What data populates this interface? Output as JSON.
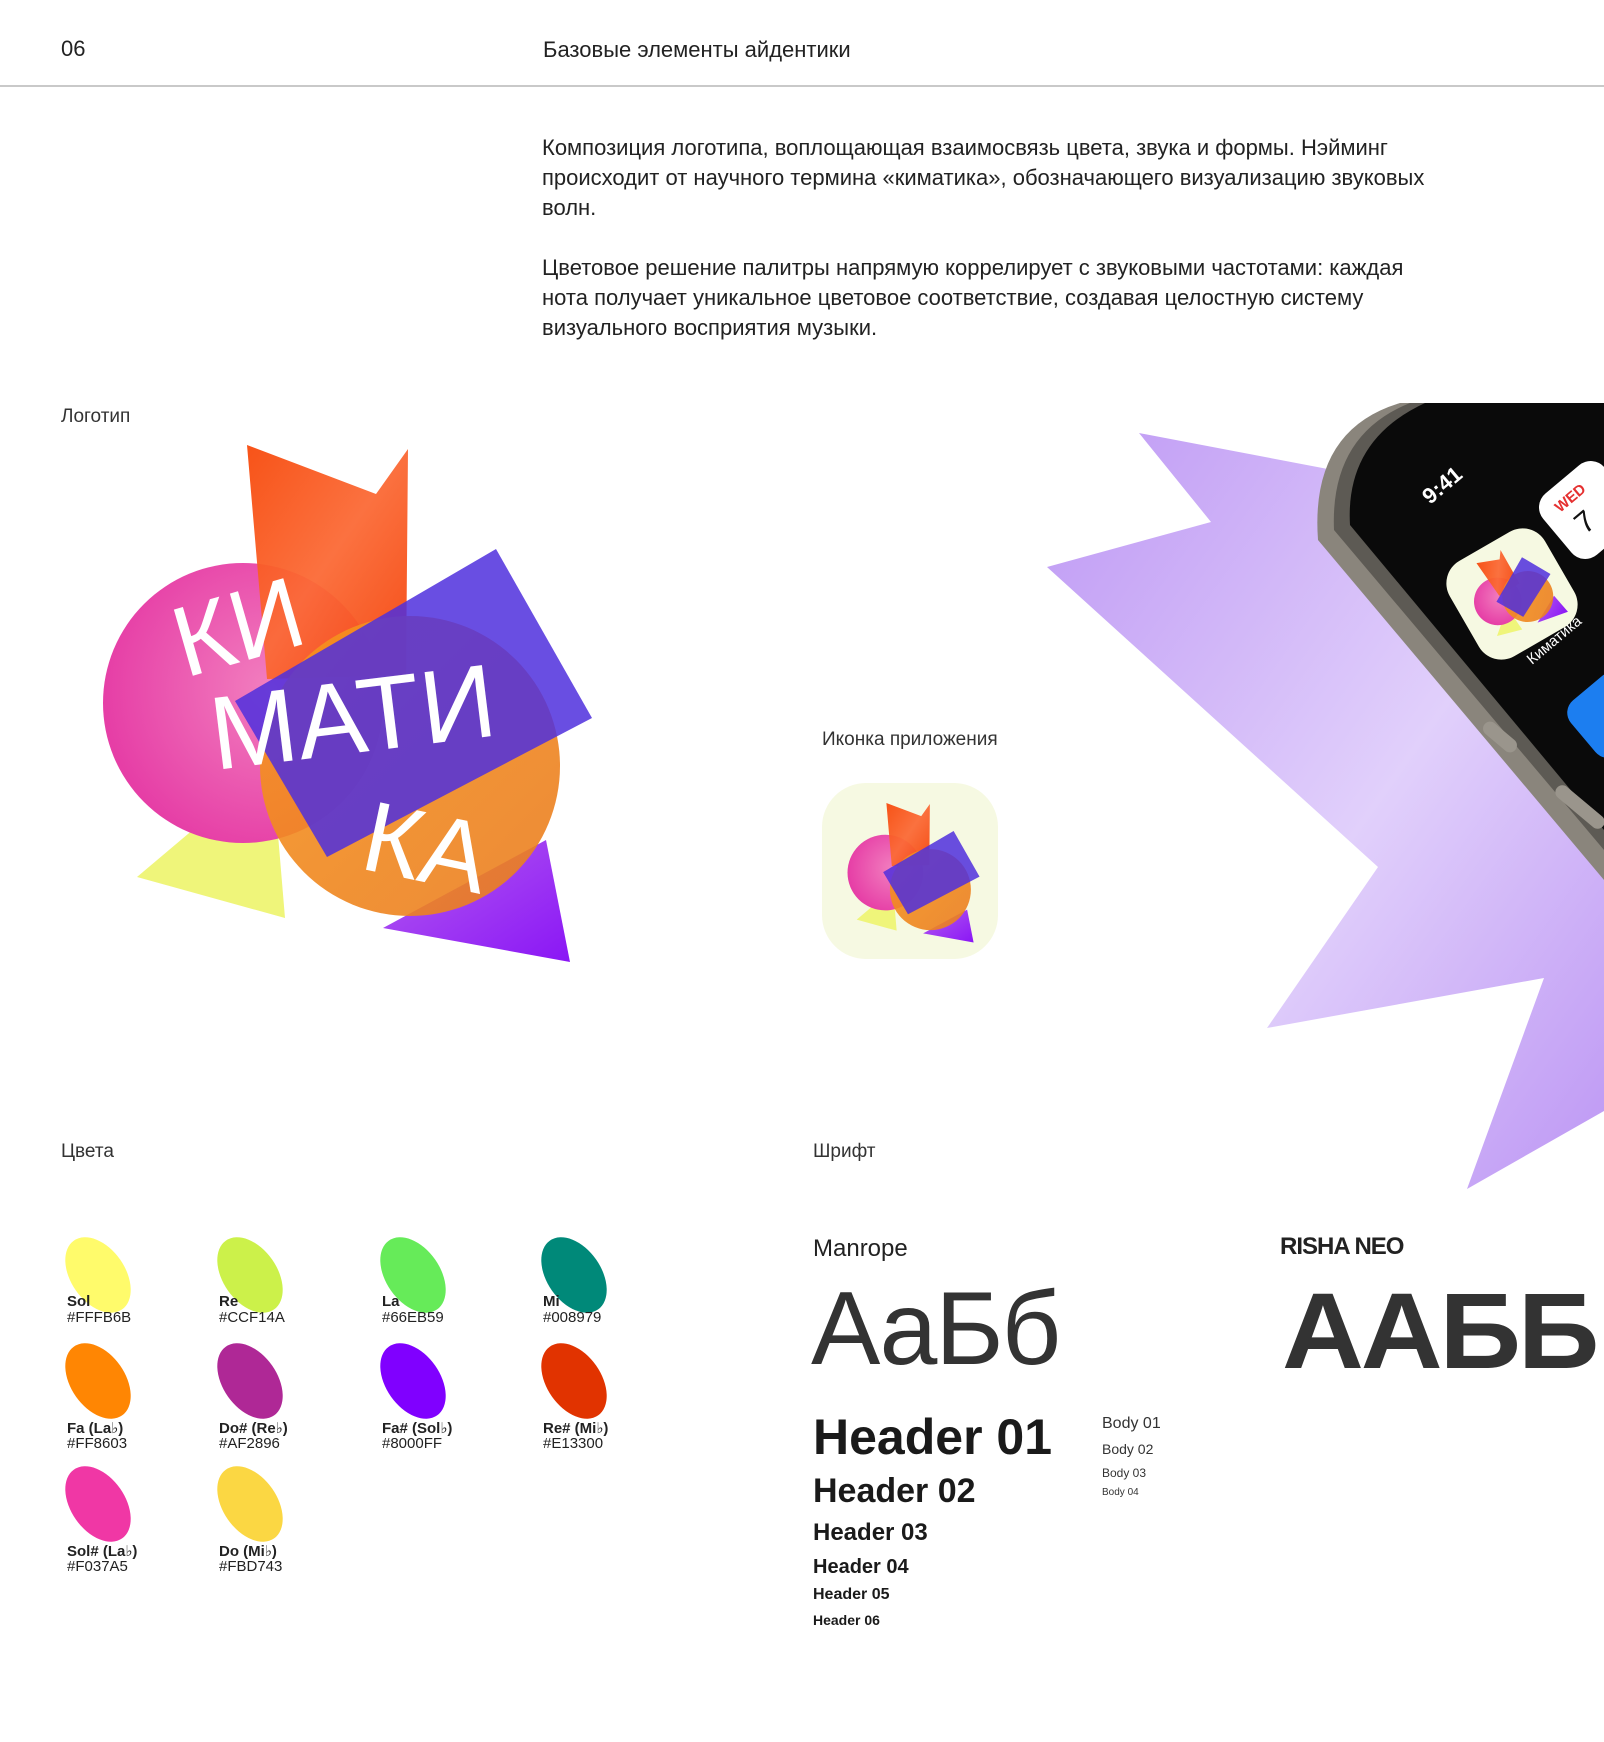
{
  "header": {
    "page_number": "06",
    "title": "Базовые элементы айдентики"
  },
  "intro": {
    "paragraphs": [
      "Композиция логотипа, воплощающая взаимосвязь цвета, звука и формы. Нэйминг происходит от научного термина «киматика», обозначающего визуализацию звуковых волн.",
      "Цветовое решение палитры напрямую коррелирует с звуковыми частотами: каждая нота получает уникальное цветовое соответствие, создавая целостную систему визуального восприятия музыки."
    ]
  },
  "logo_section": {
    "label": "Логотип",
    "logo_text": [
      "КИ",
      "МАТИ",
      "КА"
    ]
  },
  "app_icon_section": {
    "label": "Иконка приложения"
  },
  "phone": {
    "time": "9:41",
    "calendar_day": "WED",
    "calendar_date": "7",
    "app_label": "Киматика"
  },
  "colors_section": {
    "label": "Цвета",
    "swatches": [
      {
        "note": "Sol",
        "hex": "#FFFB6B"
      },
      {
        "note": "Re",
        "hex": "#CCF14A"
      },
      {
        "note": "La",
        "hex": "#66EB59"
      },
      {
        "note": "Mi",
        "hex": "#008979"
      },
      {
        "note": "Fa (La♭)",
        "hex": "#FF8603"
      },
      {
        "note": "Do# (Re♭)",
        "hex": "#AF2896"
      },
      {
        "note": "Fa# (Sol♭)",
        "hex": "#8000FF"
      },
      {
        "note": "Re# (Mi♭)",
        "hex": "#E13300"
      },
      {
        "note": "Sol# (La♭)",
        "hex": "#F037A5"
      },
      {
        "note": "Do (Mi♭)",
        "hex": "#FBD743"
      }
    ]
  },
  "font_section": {
    "label": "Шрифт",
    "primary": {
      "name": "Manrope",
      "sample": "АаБб"
    },
    "secondary": {
      "name": "RISHA NEO",
      "sample": "ААББ"
    },
    "headers": [
      "Header 01",
      "Header 02",
      "Header 03",
      "Header 04",
      "Header 05",
      "Header 06"
    ],
    "body": [
      "Body 01",
      "Body 02",
      "Body 03",
      "Body 04"
    ]
  },
  "accent_colors": {
    "star": "#a774f0",
    "icon_bg": "#f6f9e2",
    "text": "#222222"
  }
}
